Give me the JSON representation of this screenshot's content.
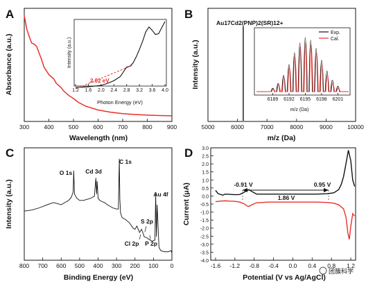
{
  "chart_data": [
    {
      "panel": "A",
      "type": "line",
      "xlabel": "Wavelength (nm)",
      "ylabel": "Absorbance (a.u.)",
      "xlim": [
        300,
        900
      ],
      "xticks": [
        300,
        400,
        500,
        600,
        700,
        800,
        900
      ],
      "series": [
        {
          "color": "#e8302a",
          "x": [
            300,
            310,
            320,
            330,
            340,
            350,
            360,
            370,
            380,
            400,
            420,
            430,
            440,
            450,
            460,
            480,
            500,
            520,
            550,
            600,
            650,
            700,
            750,
            800,
            850,
            900
          ],
          "y": [
            0.97,
            0.85,
            0.78,
            0.72,
            0.71,
            0.69,
            0.63,
            0.57,
            0.5,
            0.43,
            0.39,
            0.35,
            0.33,
            0.31,
            0.28,
            0.24,
            0.21,
            0.175,
            0.14,
            0.105,
            0.085,
            0.072,
            0.064,
            0.058,
            0.054,
            0.052
          ]
        }
      ],
      "inset": {
        "type": "line",
        "xlabel": "Photon Energy (eV)",
        "ylabel": "Intensity (a.u.)",
        "xlim": [
          1.2,
          4.0
        ],
        "xticks": [
          "1.2",
          "1.6",
          "2.0",
          "2.4",
          "2.8",
          "3.2",
          "3.6",
          "4.0"
        ],
        "annotation": "2.02 eV",
        "series": [
          {
            "color": "#111111",
            "x": [
              1.2,
              1.6,
              2.0,
              2.2,
              2.4,
              2.6,
              2.7,
              2.8,
              2.9,
              3.0,
              3.1,
              3.2,
              3.3,
              3.4,
              3.5,
              3.6,
              3.7,
              3.8,
              3.9,
              4.0
            ],
            "y": [
              0.02,
              0.03,
              0.05,
              0.08,
              0.12,
              0.18,
              0.25,
              0.32,
              0.33,
              0.38,
              0.47,
              0.58,
              0.7,
              0.84,
              0.91,
              0.86,
              0.8,
              0.81,
              0.9,
              0.99
            ]
          },
          {
            "color": "#e8302a",
            "dash": true,
            "x": [
              1.2,
              3.0
            ],
            "y": [
              0.0,
              0.35
            ]
          }
        ]
      }
    },
    {
      "panel": "B",
      "type": "line",
      "title": "Au17Cd2(PNP)2(SR)12+",
      "xlabel": "m/z (Da)",
      "ylabel": "Intensity (a.u.)",
      "xlim": [
        5000,
        10000
      ],
      "xticks": [
        5000,
        6000,
        7000,
        8000,
        9000,
        10000
      ],
      "peak_x": 6195,
      "inset": {
        "type": "line",
        "xlabel": "m/z (Da)",
        "xlim": [
          6186,
          6203
        ],
        "xticks": [
          6189,
          6192,
          6195,
          6198,
          6201
        ],
        "legend_position": "top-right",
        "series": [
          {
            "name": "Exp.",
            "color": "#111111",
            "x": [
              6189,
              6190,
              6191,
              6192,
              6193,
              6194,
              6195,
              6196,
              6197,
              6198,
              6199,
              6200,
              6201
            ],
            "y": [
              0.06,
              0.15,
              0.3,
              0.5,
              0.72,
              0.9,
              1.0,
              0.95,
              0.8,
              0.58,
              0.38,
              0.21,
              0.1
            ]
          },
          {
            "name": "Cal.",
            "color": "#e8302a",
            "x": [
              6189,
              6190,
              6191,
              6192,
              6193,
              6194,
              6195,
              6196,
              6197,
              6198,
              6199,
              6200,
              6201
            ],
            "y": [
              0.04,
              0.12,
              0.26,
              0.45,
              0.66,
              0.84,
              0.93,
              0.88,
              0.72,
              0.5,
              0.3,
              0.15,
              0.06
            ]
          }
        ]
      }
    },
    {
      "panel": "C",
      "type": "line",
      "xlabel": "Binding Energy (eV)",
      "ylabel": "Intensity (a.u.)",
      "xlim": [
        800,
        0
      ],
      "xticks": [
        800,
        700,
        600,
        500,
        400,
        300,
        200,
        100,
        0
      ],
      "annotations": [
        "O 1s",
        "Cd 3d",
        "C 1s",
        "S 2p",
        "Au 4f",
        "Cl 2p",
        "P 2p"
      ],
      "series": [
        {
          "color": "#111111",
          "x": [
            800,
            760,
            720,
            690,
            660,
            640,
            620,
            600,
            580,
            560,
            545,
            535,
            532,
            528,
            515,
            500,
            480,
            460,
            440,
            420,
            412,
            408,
            405,
            400,
            390,
            380,
            365,
            350,
            340,
            320,
            300,
            290,
            285,
            282,
            278,
            270,
            250,
            230,
            210,
            200,
            190,
            175,
            165,
            160,
            150,
            135,
            120,
            105,
            92,
            88,
            84,
            80,
            70,
            60,
            40,
            20,
            5,
            0
          ],
          "y": [
            0.44,
            0.45,
            0.47,
            0.49,
            0.51,
            0.52,
            0.51,
            0.5,
            0.52,
            0.54,
            0.57,
            0.62,
            0.82,
            0.6,
            0.56,
            0.54,
            0.54,
            0.55,
            0.56,
            0.58,
            0.75,
            0.6,
            0.72,
            0.56,
            0.54,
            0.53,
            0.52,
            0.5,
            0.49,
            0.47,
            0.46,
            0.46,
            0.93,
            0.55,
            0.42,
            0.38,
            0.36,
            0.33,
            0.28,
            0.27,
            0.3,
            0.24,
            0.27,
            0.25,
            0.2,
            0.19,
            0.17,
            0.16,
            0.17,
            0.6,
            0.2,
            0.5,
            0.1,
            0.07,
            0.06,
            0.06,
            0.07,
            0.05
          ]
        }
      ]
    },
    {
      "panel": "D",
      "type": "line",
      "xlabel": "Potential (V vs Ag/AgCl)",
      "ylabel": "Current (μA)",
      "xlim": [
        -1.7,
        1.3
      ],
      "ylim": [
        -4.0,
        3.0
      ],
      "xticks": [
        -1.6,
        -1.2,
        -0.8,
        -0.4,
        0.0,
        0.4,
        0.8,
        1.2
      ],
      "xtick_labels": [
        "-1.6",
        "-1.2",
        "-0.8",
        "-0.4",
        "0.0",
        "0.4",
        "0.8",
        "1.2"
      ],
      "yticks": [
        -4.0,
        -3.5,
        -3.0,
        -2.5,
        -2.0,
        -1.5,
        -1.0,
        -0.5,
        0.0,
        0.5,
        1.0,
        1.5,
        2.0,
        2.5,
        3.0
      ],
      "ytick_labels": [
        "-4.0",
        "-3.5",
        "-3.0",
        "-2.5",
        "-2.0",
        "-1.5",
        "-1.0",
        "-0.5",
        "0.0",
        "0.5",
        "1.0",
        "1.5",
        "2.0",
        "2.5",
        "3.0"
      ],
      "annotations": {
        "left": "-0.91 V",
        "right": "0.95 V",
        "gap": "1.86 V"
      },
      "series": [
        {
          "color": "#111111",
          "x": [
            -1.6,
            -1.55,
            -1.5,
            -1.45,
            -1.4,
            -1.3,
            -1.2,
            -1.1,
            -1.0,
            -0.91,
            -0.85,
            -0.75,
            -0.5,
            -0.25,
            0.0,
            0.25,
            0.5,
            0.7,
            0.85,
            0.95,
            1.0,
            1.05,
            1.1,
            1.15,
            1.2,
            1.24,
            1.28
          ],
          "y": [
            0.35,
            0.15,
            0.1,
            0.05,
            0.12,
            0.1,
            0.08,
            0.09,
            0.25,
            0.4,
            0.28,
            0.12,
            0.12,
            0.12,
            0.12,
            0.12,
            0.12,
            0.14,
            0.2,
            0.4,
            0.7,
            1.2,
            2.0,
            2.85,
            2.2,
            1.0,
            0.6
          ]
        },
        {
          "color": "#e8302a",
          "x": [
            -1.6,
            -1.5,
            -1.4,
            -1.3,
            -1.2,
            -1.1,
            -1.0,
            -0.95,
            -0.91,
            -0.85,
            -0.75,
            -0.5,
            -0.25,
            0.0,
            0.25,
            0.5,
            0.7,
            0.85,
            0.95,
            1.05,
            1.1,
            1.14,
            1.17,
            1.2,
            1.24,
            1.28
          ],
          "y": [
            -0.35,
            -0.32,
            -0.3,
            -0.32,
            -0.33,
            -0.38,
            -0.5,
            -0.62,
            -0.65,
            -0.55,
            -0.42,
            -0.38,
            -0.38,
            -0.38,
            -0.38,
            -0.38,
            -0.4,
            -0.45,
            -0.55,
            -0.8,
            -1.3,
            -2.3,
            -2.7,
            -1.9,
            -1.1,
            -1.25
          ]
        }
      ]
    }
  ],
  "text": {
    "A": {
      "letter": "A",
      "ylabel": "Absorbance (a.u.)",
      "xlabel": "Wavelength (nm)",
      "xticks": [
        "300",
        "400",
        "500",
        "600",
        "700",
        "800",
        "900"
      ],
      "inset_ylabel": "Intensity (a.u.)",
      "inset_xlabel": "Photon Energy (eV)",
      "inset_xticks": [
        "1.2",
        "1.6",
        "2.0",
        "2.4",
        "2.8",
        "3.2",
        "3.6",
        "4.0"
      ],
      "inset_note": "2.02 eV"
    },
    "B": {
      "letter": "B",
      "title": "Au17Cd2(PNP)2(SR)12+",
      "ylabel": "Intensity (a.u.)",
      "xlabel": "m/z (Da)",
      "xticks": [
        "5000",
        "6000",
        "7000",
        "8000",
        "9000",
        "10000"
      ],
      "inset_xlabel": "m/z (Da)",
      "inset_xticks": [
        "6189",
        "6192",
        "6195",
        "6198",
        "6201"
      ],
      "legend_exp": "Exp.",
      "legend_cal": "Cal."
    },
    "C": {
      "letter": "C",
      "ylabel": "Intensity (a.u.)",
      "xlabel": "Binding Energy (eV)",
      "xticks": [
        "800",
        "700",
        "600",
        "500",
        "400",
        "300",
        "200",
        "100",
        "0"
      ],
      "peaks": [
        "O 1s",
        "Cd 3d",
        "C 1s",
        "S 2p",
        "Au 4f",
        "Cl 2p",
        "P 2p"
      ]
    },
    "D": {
      "letter": "D",
      "ylabel": "Current (μA)",
      "xlabel": "Potential (V vs Ag/AgCl)",
      "xticks": [
        "-1.6",
        "-1.2",
        "-0.8",
        "-0.4",
        "0.0",
        "0.4",
        "0.8",
        "1.2"
      ],
      "yticks": [
        "3.0",
        "2.5",
        "2.0",
        "1.5",
        "1.0",
        "0.5",
        "0.0",
        "-0.5",
        "-1.0",
        "-1.5",
        "-2.0",
        "-2.5",
        "-3.0",
        "-3.5",
        "-4.0"
      ],
      "left": "-0.91 V",
      "right": "0.95 V",
      "gap": "1.86 V"
    },
    "watermark": "团簇科学"
  },
  "colors": {
    "red": "#e8302a",
    "black": "#111111"
  }
}
